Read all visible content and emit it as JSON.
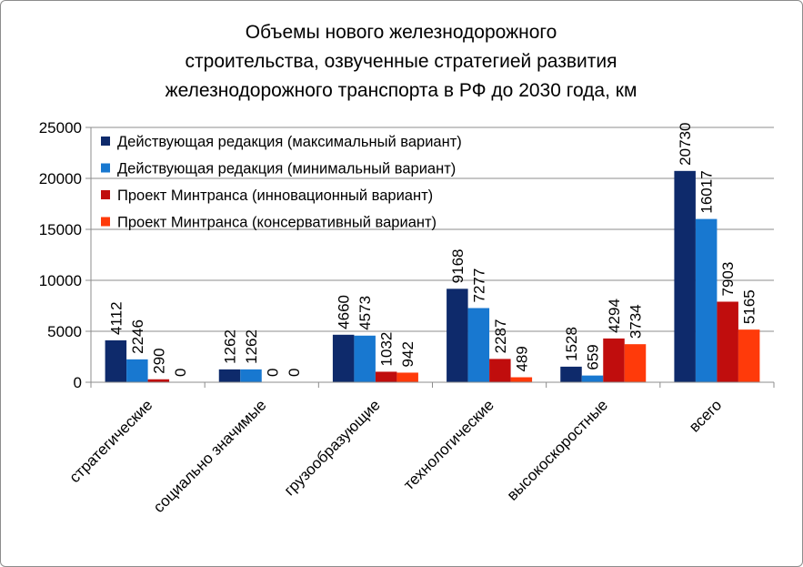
{
  "chart_data": {
    "type": "bar",
    "title_lines": [
      "Объемы нового железнодорожного",
      "строительства, озвученные стратегией развития",
      "железнодорожного транспорта в РФ до 2030 года, км"
    ],
    "categories": [
      "стратегические",
      "социально значимые",
      "грузообразующие",
      "технологические",
      "высокоскоростные",
      "всего"
    ],
    "series": [
      {
        "name": "Действующая редакция (максимальный вариант)",
        "color": "#0e2a6b",
        "values": [
          4112,
          1262,
          4660,
          9168,
          1528,
          20730
        ]
      },
      {
        "name": "Действующая редакция (минимальный вариант)",
        "color": "#1878d0",
        "values": [
          2246,
          1262,
          4573,
          7277,
          659,
          16017
        ]
      },
      {
        "name": "Проект Минтранса (инновационный вариант)",
        "color": "#c00d0d",
        "values": [
          290,
          0,
          1032,
          2287,
          4294,
          7903
        ]
      },
      {
        "name": "Проект Минтранса (консервативный вариант)",
        "color": "#ff3a0a",
        "values": [
          0,
          0,
          942,
          489,
          3734,
          5165
        ]
      }
    ],
    "ylim": [
      0,
      25000
    ],
    "yticks": [
      0,
      5000,
      10000,
      15000,
      20000,
      25000
    ],
    "grid": true,
    "legend_position": "top-left"
  }
}
